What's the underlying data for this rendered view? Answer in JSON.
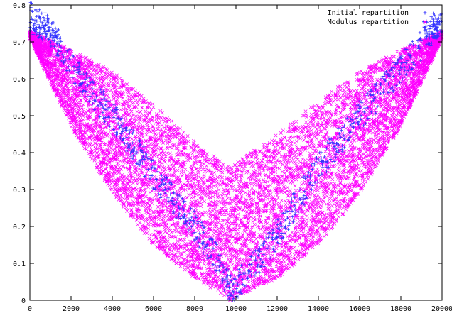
{
  "chart_data": {
    "type": "scatter",
    "title": "",
    "xlabel": "",
    "ylabel": "",
    "xlim": [
      0,
      20000
    ],
    "ylim": [
      0,
      0.8
    ],
    "x_ticks": [
      0,
      2000,
      4000,
      6000,
      8000,
      10000,
      12000,
      14000,
      16000,
      18000,
      20000
    ],
    "y_ticks": [
      0,
      0.1,
      0.2,
      0.3,
      0.4,
      0.5,
      0.6,
      0.7,
      0.8
    ],
    "x_tick_labels": [
      "0",
      "2000",
      "4000",
      "6000",
      "8000",
      "10000",
      "12000",
      "14000",
      "16000",
      "18000",
      "20000"
    ],
    "y_tick_labels": [
      "0",
      "0.1",
      "0.2",
      "0.3",
      "0.4",
      "0.5",
      "0.6",
      "0.7",
      "0.8"
    ],
    "grid": false,
    "legend_position": "top-right",
    "series": [
      {
        "name": "Initial repartition",
        "marker": "plus",
        "color": "#3333ff",
        "description_points": [
          [
            0,
            0.77
          ],
          [
            200,
            0.76
          ],
          [
            400,
            0.75
          ],
          [
            800,
            0.74
          ],
          [
            1200,
            0.71
          ],
          [
            2000,
            0.64
          ],
          [
            3000,
            0.56
          ],
          [
            4000,
            0.5
          ],
          [
            5000,
            0.42
          ],
          [
            6000,
            0.34
          ],
          [
            7000,
            0.27
          ],
          [
            8000,
            0.2
          ],
          [
            9000,
            0.12
          ],
          [
            9800,
            0.02
          ],
          [
            10000,
            0.04
          ],
          [
            11000,
            0.1
          ],
          [
            12000,
            0.18
          ],
          [
            13000,
            0.27
          ],
          [
            14000,
            0.36
          ],
          [
            15000,
            0.43
          ],
          [
            16000,
            0.5
          ],
          [
            17000,
            0.56
          ],
          [
            18000,
            0.63
          ],
          [
            19000,
            0.69
          ],
          [
            19600,
            0.74
          ],
          [
            20000,
            0.75
          ]
        ]
      },
      {
        "name": "Modulus repartition",
        "marker": "cross",
        "color": "#ff00ff",
        "lower_envelope": [
          [
            0,
            0.71
          ],
          [
            2000,
            0.47
          ],
          [
            4000,
            0.29
          ],
          [
            6000,
            0.15
          ],
          [
            8000,
            0.06
          ],
          [
            9700,
            0.0
          ],
          [
            12000,
            0.06
          ],
          [
            14000,
            0.15
          ],
          [
            16000,
            0.29
          ],
          [
            18000,
            0.47
          ],
          [
            20000,
            0.71
          ]
        ],
        "upper_envelope": [
          [
            0,
            0.73
          ],
          [
            2000,
            0.68
          ],
          [
            4000,
            0.62
          ],
          [
            6000,
            0.53
          ],
          [
            8000,
            0.43
          ],
          [
            9700,
            0.36
          ],
          [
            12000,
            0.45
          ],
          [
            14000,
            0.54
          ],
          [
            16000,
            0.62
          ],
          [
            18000,
            0.68
          ],
          [
            20000,
            0.73
          ]
        ]
      }
    ]
  }
}
